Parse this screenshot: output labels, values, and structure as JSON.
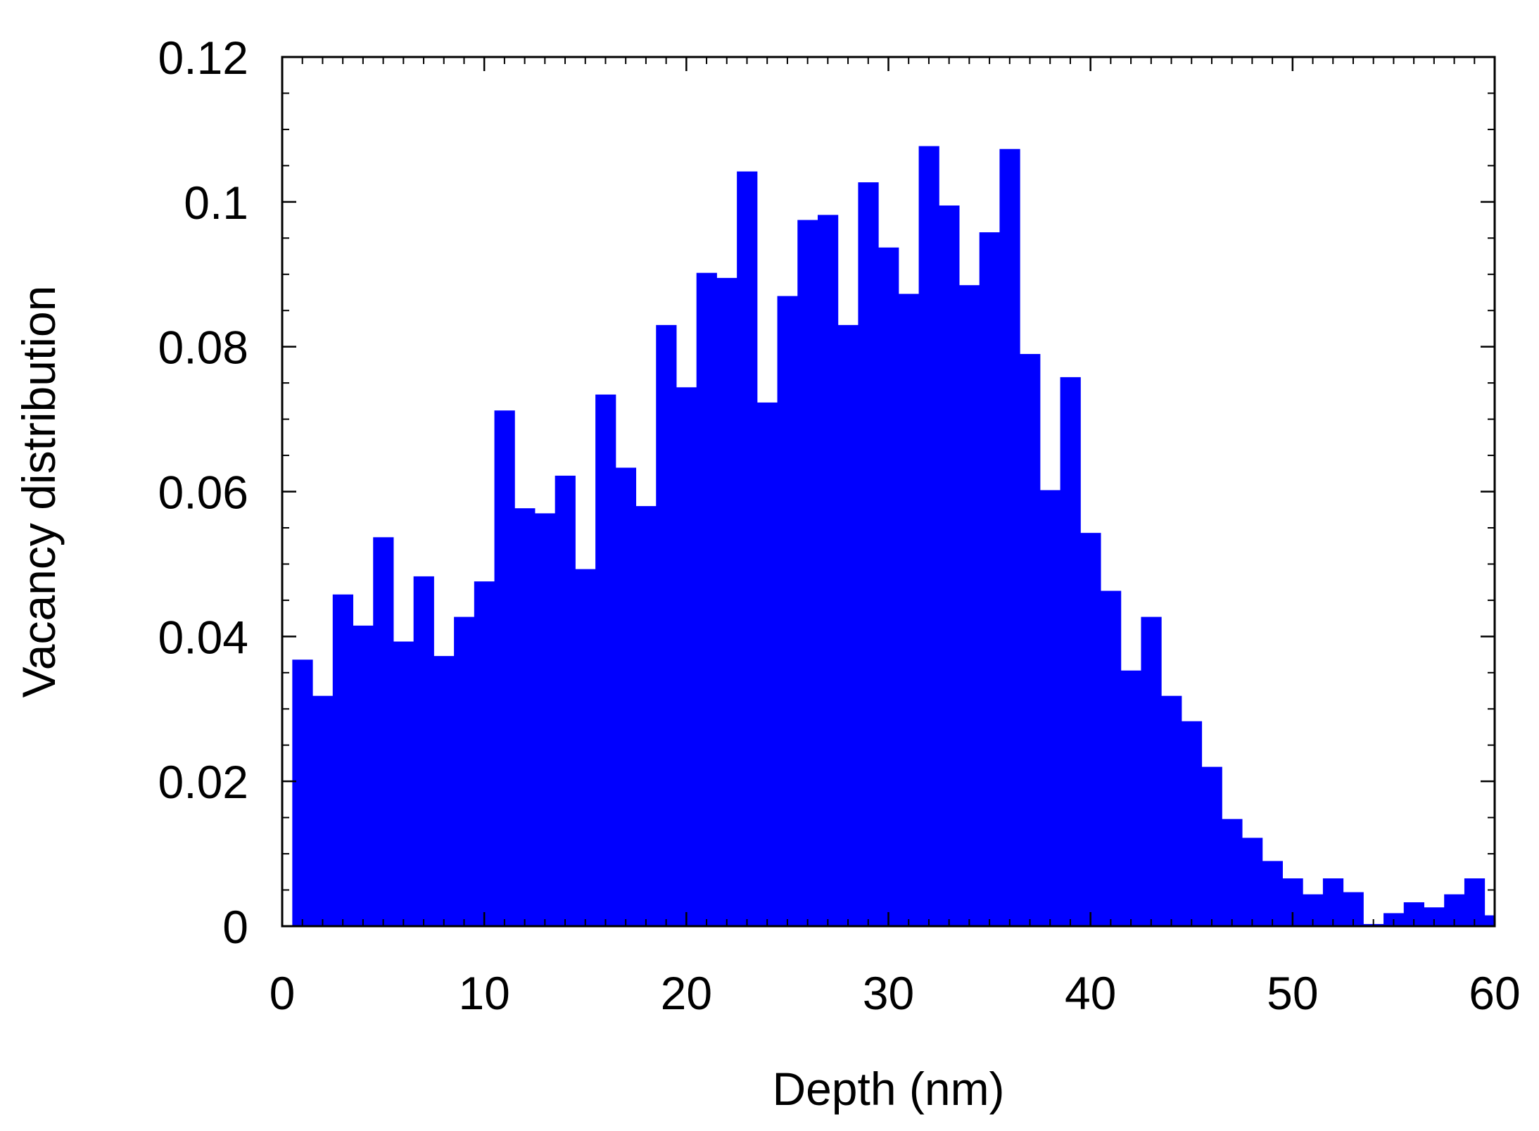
{
  "chart_data": {
    "type": "bar",
    "xlabel": "Depth (nm)",
    "ylabel": "Vacancy distribution",
    "xlim": [
      0,
      60
    ],
    "ylim": [
      0,
      0.12
    ],
    "grid": false,
    "bar_color": "#0000ff",
    "x_ticks": [
      "0",
      "10",
      "20",
      "30",
      "40",
      "50",
      "60"
    ],
    "y_ticks": [
      "0",
      "0.02",
      "0.04",
      "0.06",
      "0.08",
      "0.1",
      "0.12"
    ],
    "x_tick_values": [
      0,
      10,
      20,
      30,
      40,
      50,
      60
    ],
    "y_tick_values": [
      0,
      0.02,
      0.04,
      0.06,
      0.08,
      0.1,
      0.12
    ],
    "bin_edges": [
      0.5,
      1.5,
      2.5,
      3.5,
      4.5,
      5.5,
      6.5,
      7.5,
      8.5,
      9.5,
      10.5,
      11.5,
      12.5,
      13.5,
      14.5,
      15.5,
      16.5,
      17.5,
      18.5,
      19.5,
      20.5,
      21.5,
      22.5,
      23.5,
      24.5,
      25.5,
      26.5,
      27.5,
      28.5,
      29.5,
      30.5,
      31.5,
      32.5,
      33.5,
      34.5,
      35.5,
      36.5,
      37.5,
      38.5,
      39.5,
      40.5,
      41.5,
      42.5,
      43.5,
      44.5,
      45.5,
      46.5,
      47.5,
      48.5,
      49.5,
      50.5,
      51.5,
      52.5,
      53.5,
      54.5,
      55.5,
      56.5,
      57.5,
      58.5,
      59.5,
      60
    ],
    "values": [
      0.0368,
      0.0318,
      0.0458,
      0.0415,
      0.0537,
      0.0393,
      0.0483,
      0.0373,
      0.0427,
      0.0476,
      0.0712,
      0.0577,
      0.057,
      0.0622,
      0.0493,
      0.0734,
      0.0633,
      0.058,
      0.083,
      0.0744,
      0.0902,
      0.0895,
      0.1042,
      0.0723,
      0.087,
      0.0975,
      0.0982,
      0.083,
      0.1027,
      0.0937,
      0.0873,
      0.1077,
      0.0995,
      0.0885,
      0.0958,
      0.1073,
      0.079,
      0.0602,
      0.0758,
      0.0543,
      0.0463,
      0.0353,
      0.0427,
      0.0318,
      0.0283,
      0.022,
      0.0148,
      0.0122,
      0.009,
      0.0066,
      0.0044,
      0.0066,
      0.0047,
      0.0003,
      0.0018,
      0.0033,
      0.0026,
      0.0044,
      0.0066,
      0.0015
    ]
  }
}
